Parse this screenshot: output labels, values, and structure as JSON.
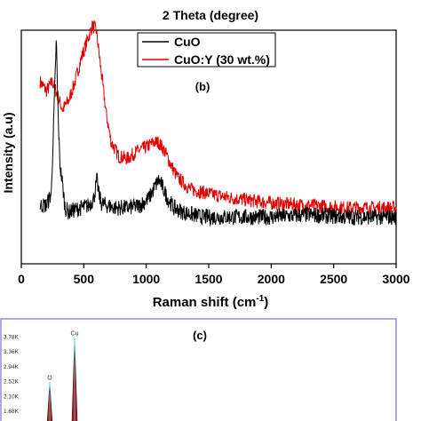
{
  "top_panel": {
    "xlabel": "2 Theta (degree)"
  },
  "chart_data": [
    {
      "type": "line",
      "panel_label": "(b)",
      "xlabel_main": "Raman shift (cm",
      "xlabel_sup": "-1",
      "xlabel_close": ")",
      "ylabel": "Intensity (a.u)",
      "xlim": [
        0,
        3000
      ],
      "xticks": [
        "0",
        "500",
        "1000",
        "1500",
        "2000",
        "2500",
        "3000"
      ],
      "grid": false,
      "legend_position": "top-center",
      "series": [
        {
          "name": "CuO",
          "color": "#000000",
          "x": [
            150,
            200,
            240,
            260,
            280,
            295,
            310,
            330,
            350,
            380,
            420,
            480,
            540,
            580,
            605,
            620,
            640,
            680,
            750,
            850,
            950,
            1020,
            1070,
            1100,
            1130,
            1170,
            1220,
            1300,
            1450,
            1700,
            2000,
            2300,
            2600,
            2900,
            3000
          ],
          "y": [
            0.25,
            0.25,
            0.3,
            0.62,
            0.96,
            0.62,
            0.42,
            0.34,
            0.24,
            0.22,
            0.23,
            0.24,
            0.25,
            0.28,
            0.36,
            0.3,
            0.26,
            0.25,
            0.24,
            0.24,
            0.25,
            0.28,
            0.33,
            0.36,
            0.33,
            0.28,
            0.24,
            0.22,
            0.2,
            0.2,
            0.2,
            0.21,
            0.2,
            0.2,
            0.2
          ]
        },
        {
          "name": "CuO:Y (30 wt.%)",
          "color": "#e00000",
          "x": [
            150,
            200,
            250,
            290,
            330,
            380,
            430,
            480,
            530,
            570,
            600,
            640,
            680,
            720,
            780,
            850,
            920,
            1000,
            1060,
            1100,
            1150,
            1200,
            1250,
            1350,
            1500,
            1700,
            2000,
            2300,
            2600,
            2900,
            3000
          ],
          "y": [
            0.78,
            0.74,
            0.78,
            0.72,
            0.66,
            0.7,
            0.78,
            0.88,
            0.96,
            1.02,
            1.0,
            0.82,
            0.64,
            0.52,
            0.46,
            0.45,
            0.48,
            0.5,
            0.52,
            0.52,
            0.48,
            0.42,
            0.37,
            0.32,
            0.3,
            0.28,
            0.26,
            0.25,
            0.24,
            0.24,
            0.24
          ]
        }
      ]
    },
    {
      "type": "bar",
      "panel_label": "(c)",
      "yticks": [
        "3.78K",
        "3.36K",
        "2.94K",
        "2.52K",
        "2.10K",
        "1.68K"
      ],
      "peaks": [
        {
          "label": "O",
          "value": 2.45
        },
        {
          "label": "Cu",
          "value": 3.7
        }
      ]
    }
  ]
}
